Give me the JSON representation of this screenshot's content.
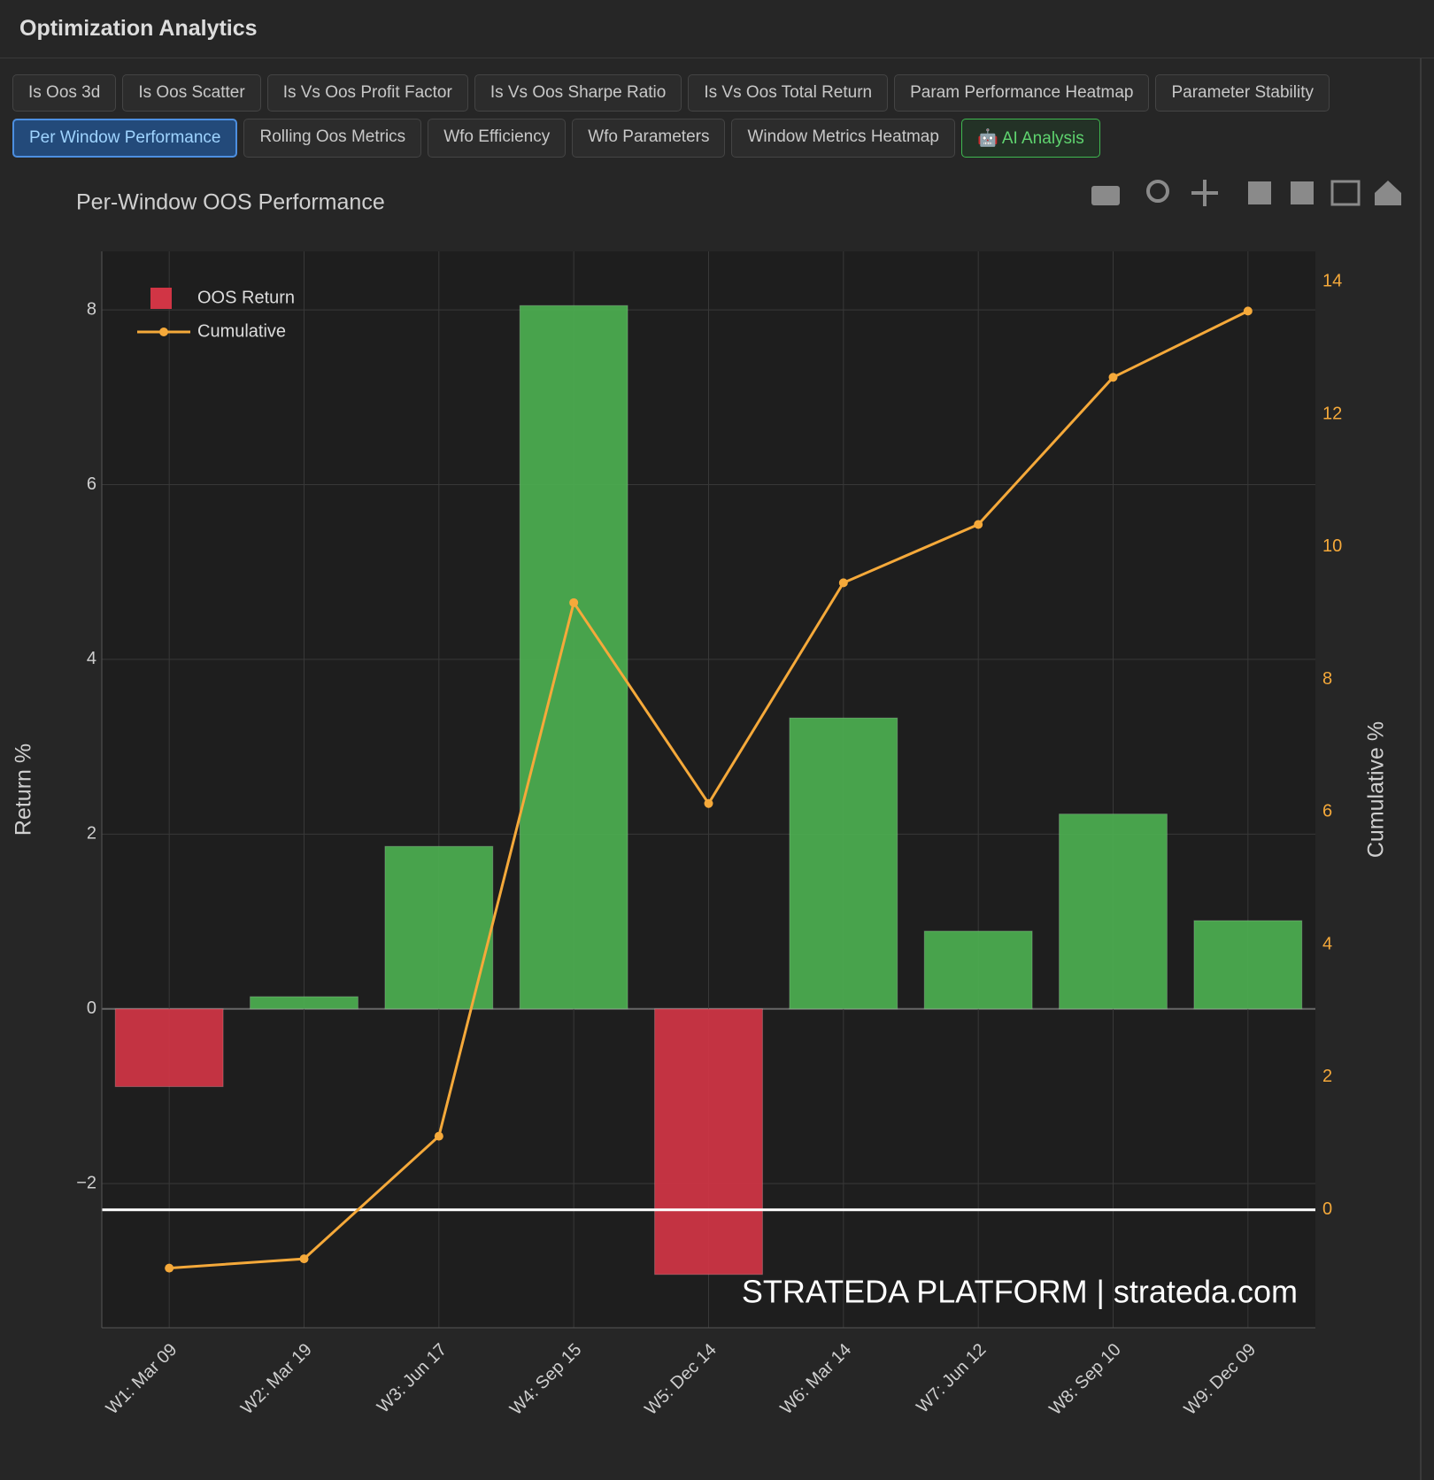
{
  "header": {
    "title": "Optimization Analytics"
  },
  "tabs": [
    {
      "label": "Is Oos 3d"
    },
    {
      "label": "Is Oos Scatter"
    },
    {
      "label": "Is Vs Oos Profit Factor"
    },
    {
      "label": "Is Vs Oos Sharpe Ratio"
    },
    {
      "label": "Is Vs Oos Total Return"
    },
    {
      "label": "Param Performance Heatmap"
    },
    {
      "label": "Parameter Stability"
    },
    {
      "label": "Per Window Performance",
      "state": "active"
    },
    {
      "label": "Rolling Oos Metrics"
    },
    {
      "label": "Wfo Efficiency"
    },
    {
      "label": "Wfo Parameters"
    },
    {
      "label": "Window Metrics Heatmap"
    },
    {
      "label": "🤖 AI Analysis",
      "state": "ai"
    }
  ],
  "chart_data": {
    "type": "bar_line",
    "title": "Per-Window OOS Performance",
    "watermark": "STRATEDA PLATFORM | strateda.com",
    "y_label": "Return %",
    "y2_label": "Cumulative %",
    "categories": [
      "W1: Mar 09",
      "W2: Mar 19",
      "W3: Jun 17",
      "W4: Sep 15",
      "W5: Dec 14",
      "W6: Mar 14",
      "W7: Jun 12",
      "W8: Sep 10",
      "W9: Dec 09"
    ],
    "series": [
      {
        "name": "OOS Return",
        "type": "bar",
        "color": "#d13545",
        "colors": [
          "#d13545",
          "#4caf50",
          "#4caf50",
          "#4caf50",
          "#d13545",
          "#4caf50",
          "#4caf50",
          "#4caf50",
          "#4caf50"
        ],
        "values": [
          -0.89,
          0.14,
          1.86,
          8.05,
          -3.04,
          3.33,
          0.89,
          2.23,
          1.01
        ]
      },
      {
        "name": "Cumulative",
        "type": "line",
        "axis": "y2",
        "color": "#f5a93a",
        "values": [
          -0.88,
          -0.74,
          1.11,
          9.16,
          6.13,
          9.46,
          10.34,
          12.56,
          13.56
        ]
      }
    ],
    "ylim": [
      -3.65,
      8.67
    ],
    "yticks": [
      {
        "value": -2,
        "label": "−2"
      },
      0,
      2,
      4,
      6,
      8
    ],
    "y2lim": [
      -1.78,
      14.46
    ],
    "y2ticks": [
      0,
      2,
      4,
      6,
      8,
      10,
      12,
      14
    ],
    "y2_zero_line": true,
    "grid": true,
    "legend": "top-left"
  }
}
